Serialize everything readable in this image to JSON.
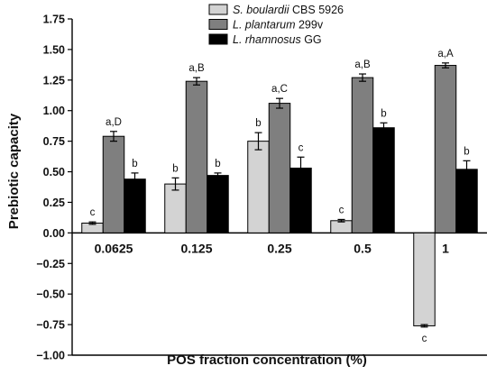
{
  "chart_data": {
    "type": "bar",
    "xlabel": "POS fraction concentration (%)",
    "ylabel": "Prebiotic capacity",
    "ylim": [
      -1.0,
      1.75
    ],
    "yticks": [
      "−1.00",
      "−0.75",
      "−0.50",
      "−0.25",
      "0.00",
      "0.25",
      "0.50",
      "0.75",
      "1.00",
      "1.25",
      "1.50",
      "1.75"
    ],
    "categories": [
      "0.0625",
      "0.125",
      "0.25",
      "0.5",
      "1"
    ],
    "legend_position": "top-right",
    "grid": false,
    "series": [
      {
        "name_italic": "S. boulardii",
        "name_rest": " CBS 5926",
        "color": "#d3d3d3",
        "values": [
          0.08,
          0.4,
          0.75,
          0.1,
          -0.76
        ],
        "errors": [
          0.01,
          0.05,
          0.07,
          0.01,
          0.01
        ],
        "labels": [
          "c",
          "b",
          "b",
          "c",
          "c"
        ]
      },
      {
        "name_italic": "L. plantarum",
        "name_rest": " 299v",
        "color": "#7f7f7f",
        "values": [
          0.79,
          1.24,
          1.06,
          1.27,
          1.37
        ],
        "errors": [
          0.04,
          0.03,
          0.04,
          0.03,
          0.02
        ],
        "labels": [
          "a,D",
          "a,B",
          "a,C",
          "a,B",
          "a,A"
        ]
      },
      {
        "name_italic": "L. rhamnosus",
        "name_rest": " GG",
        "color": "#000000",
        "values": [
          0.44,
          0.47,
          0.53,
          0.86,
          0.52
        ],
        "errors": [
          0.05,
          0.02,
          0.09,
          0.04,
          0.07
        ],
        "labels": [
          "b",
          "b",
          "c",
          "b",
          "b"
        ]
      }
    ]
  }
}
